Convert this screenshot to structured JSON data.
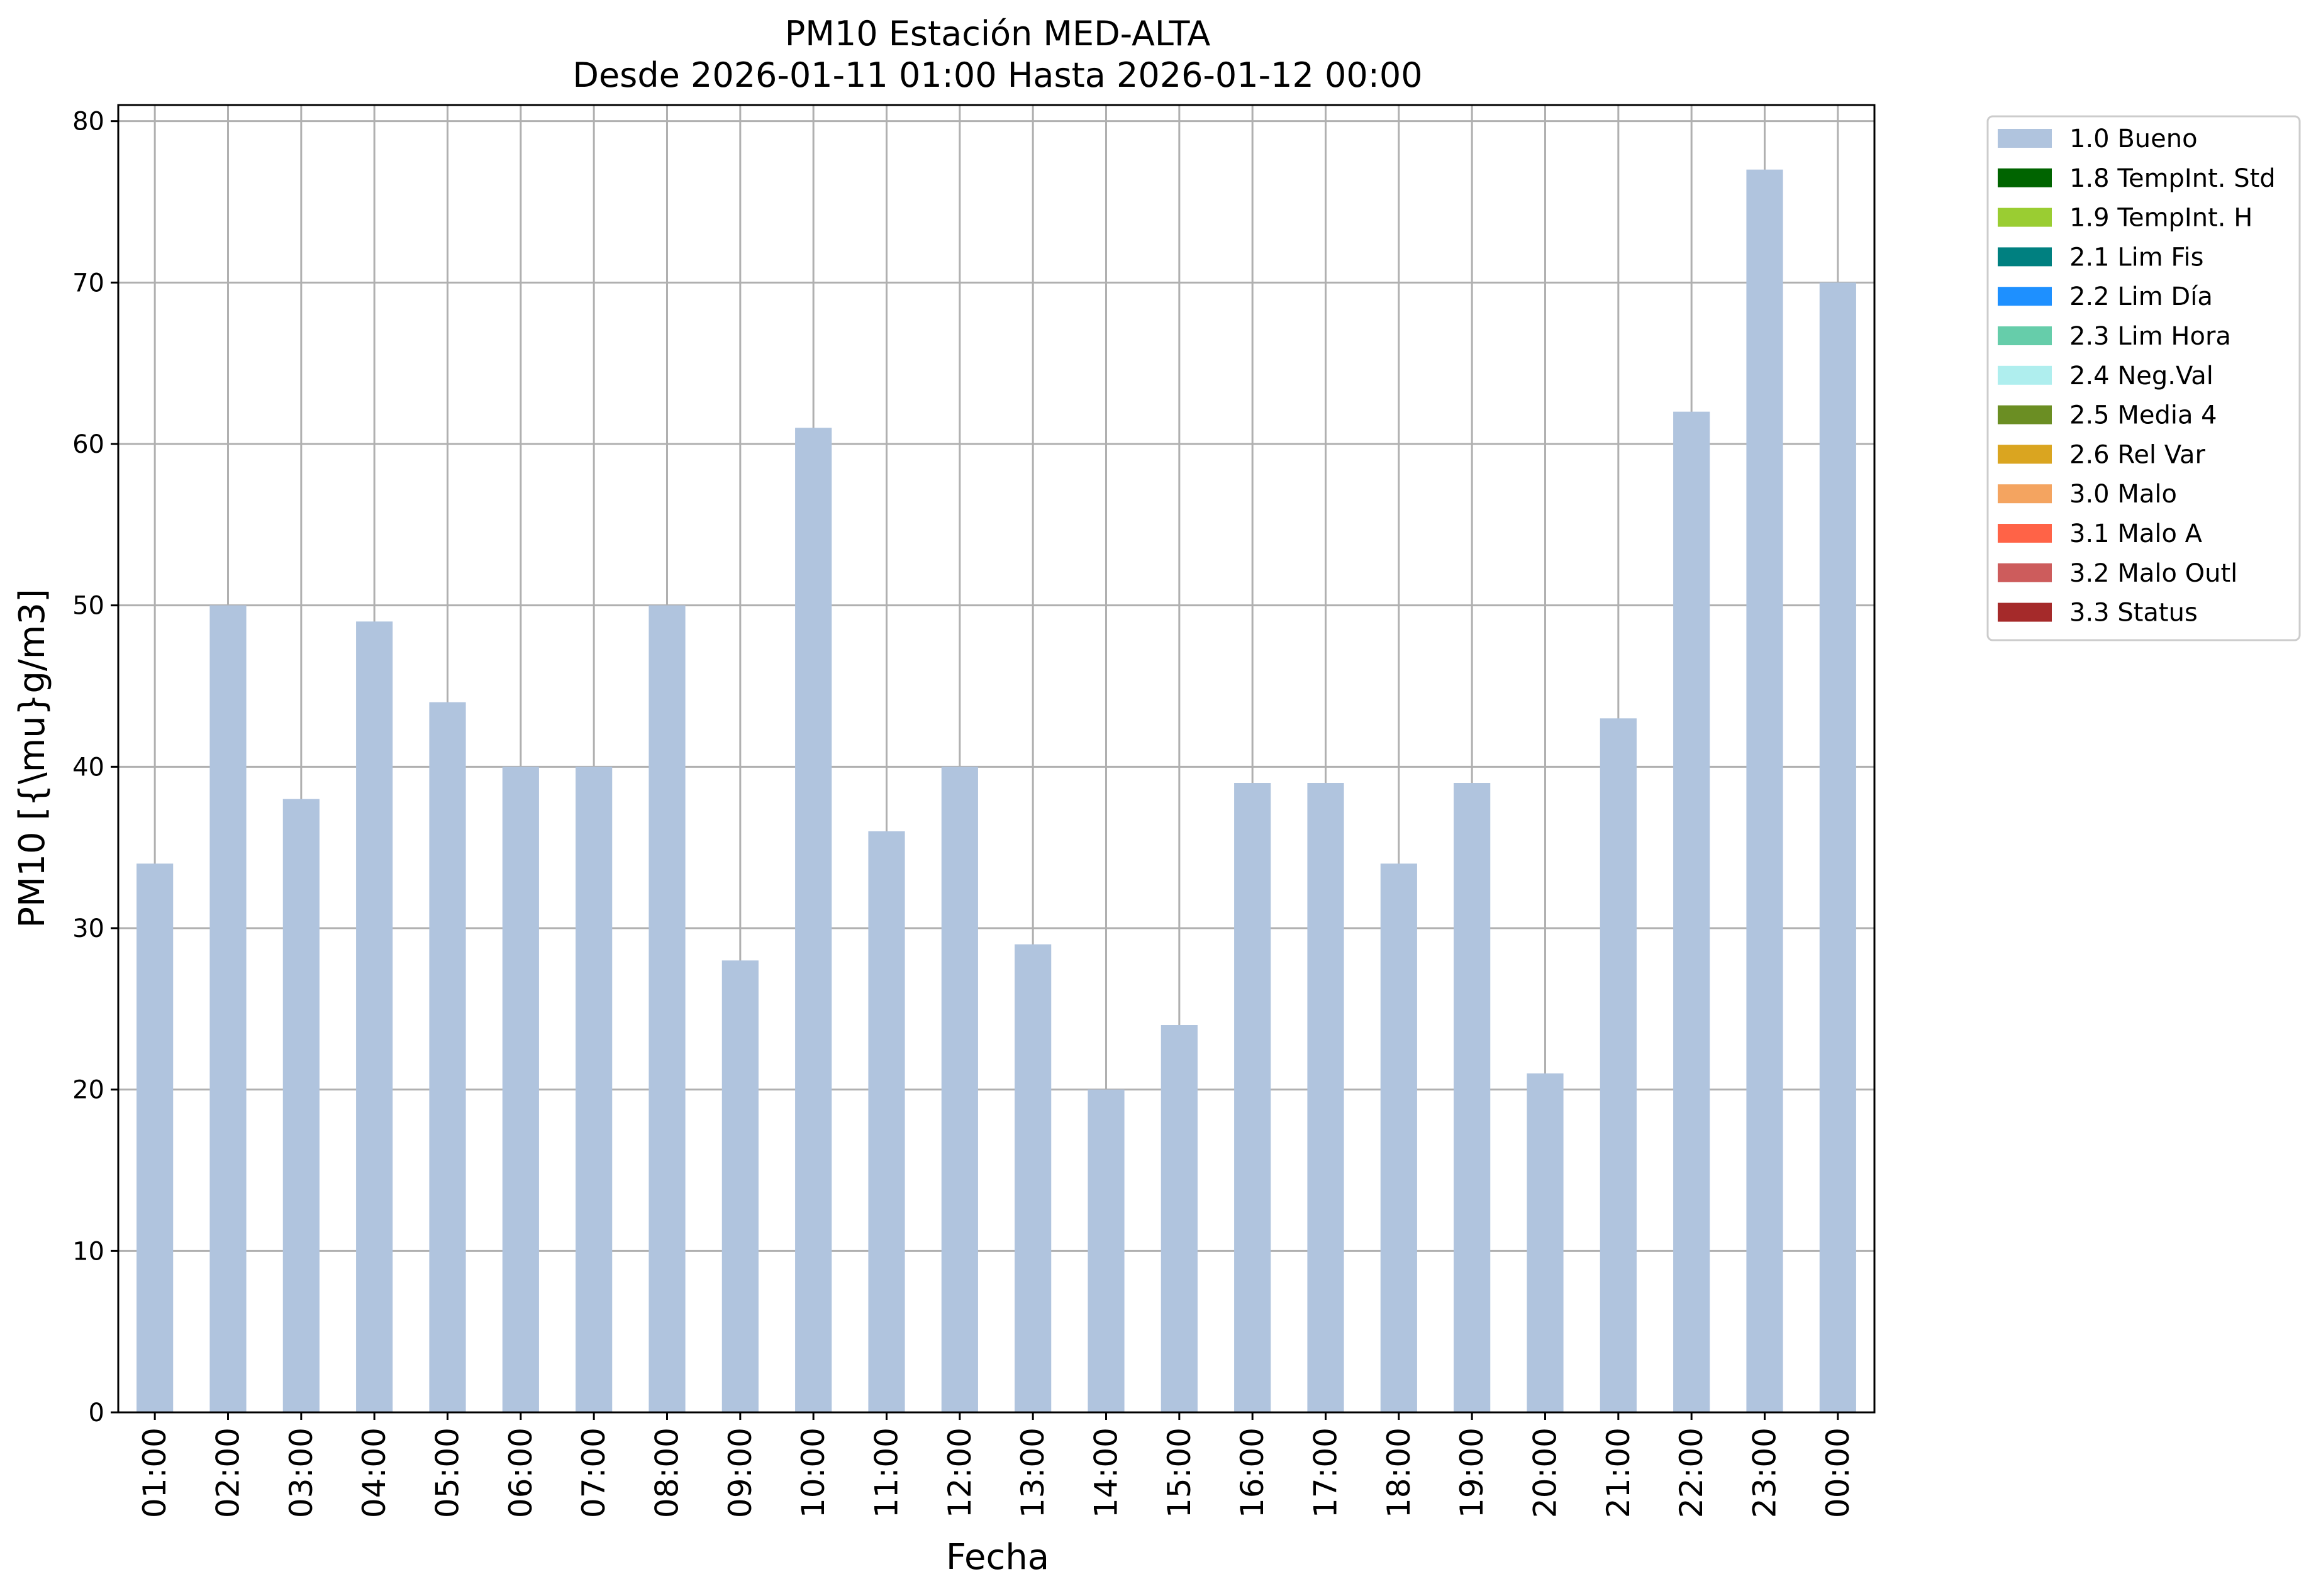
{
  "chart_data": {
    "type": "bar",
    "title": "PM10 Estación MED-ALTA",
    "subtitle": "Desde 2026-01-11 01:00 Hasta 2026-01-12 00:00",
    "xlabel": "Fecha",
    "ylabel": "PM10 [{\\mu}g/m3]",
    "ylim": [
      0,
      81
    ],
    "yticks": [
      0,
      10,
      20,
      30,
      40,
      50,
      60,
      70,
      80
    ],
    "grid": true,
    "legend_position": "outside-top-right",
    "categories": [
      "01:00",
      "02:00",
      "03:00",
      "04:00",
      "05:00",
      "06:00",
      "07:00",
      "08:00",
      "09:00",
      "10:00",
      "11:00",
      "12:00",
      "13:00",
      "14:00",
      "15:00",
      "16:00",
      "17:00",
      "18:00",
      "19:00",
      "20:00",
      "21:00",
      "22:00",
      "23:00",
      "00:00"
    ],
    "series": [
      {
        "name": "1.0 Bueno",
        "color": "#B0C4DE",
        "values": [
          34,
          50,
          38,
          49,
          44,
          40,
          40,
          50,
          28,
          61,
          36,
          40,
          29,
          20,
          24,
          39,
          39,
          34,
          39,
          21,
          43,
          62,
          77,
          70
        ]
      }
    ],
    "legend": [
      {
        "label": "1.0 Bueno",
        "color": "#B0C4DE"
      },
      {
        "label": "1.8 TempInt. Std",
        "color": "#006400"
      },
      {
        "label": "1.9 TempInt. H",
        "color": "#9ACD32"
      },
      {
        "label": "2.1 Lim Fis",
        "color": "#008080"
      },
      {
        "label": "2.2 Lim Día",
        "color": "#1E90FF"
      },
      {
        "label": "2.3 Lim Hora",
        "color": "#66CDAA"
      },
      {
        "label": "2.4 Neg.Val",
        "color": "#AFEEEE"
      },
      {
        "label": "2.5 Media 4",
        "color": "#6B8E23"
      },
      {
        "label": "2.6 Rel Var",
        "color": "#DAA520"
      },
      {
        "label": "3.0 Malo",
        "color": "#F4A460"
      },
      {
        "label": "3.1 Malo A",
        "color": "#FF6347"
      },
      {
        "label": "3.2 Malo Outl",
        "color": "#CD5C5C"
      },
      {
        "label": "3.3 Status",
        "color": "#A52A2A"
      }
    ]
  }
}
